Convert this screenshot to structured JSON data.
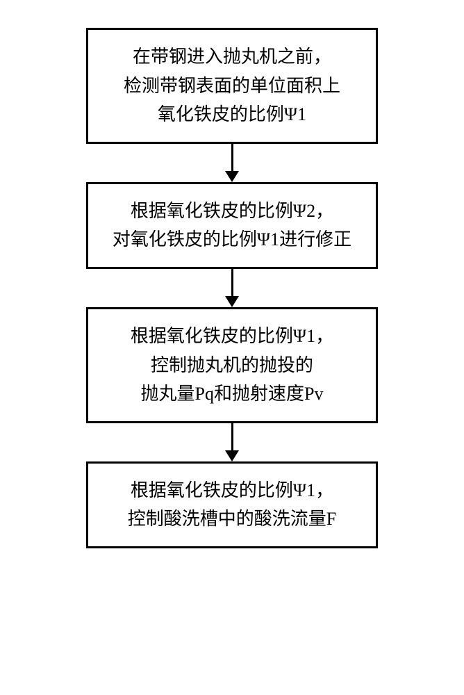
{
  "flowchart": {
    "type": "flowchart",
    "background_color": "#ffffff",
    "border_color": "#000000",
    "border_width": 3,
    "text_color": "#000000",
    "font_size": 26,
    "box_min_width": 420,
    "arrow_height": 55,
    "arrow_head_size": 16,
    "nodes": [
      {
        "id": "step1",
        "lines": [
          "在带钢进入抛丸机之前，",
          "检测带钢表面的单位面积上",
          "氧化铁皮的比例Ψ1"
        ]
      },
      {
        "id": "step2",
        "lines": [
          "根据氧化铁皮的比例Ψ2，",
          "对氧化铁皮的比例Ψ1进行修正"
        ]
      },
      {
        "id": "step3",
        "lines": [
          "根据氧化铁皮的比例Ψ1，",
          "控制抛丸机的抛投的",
          "抛丸量Pq和抛射速度Pv"
        ]
      },
      {
        "id": "step4",
        "lines": [
          "根据氧化铁皮的比例Ψ1，",
          "控制酸洗槽中的酸洗流量F"
        ]
      }
    ],
    "edges": [
      {
        "from": "step1",
        "to": "step2"
      },
      {
        "from": "step2",
        "to": "step3"
      },
      {
        "from": "step3",
        "to": "step4"
      }
    ]
  }
}
